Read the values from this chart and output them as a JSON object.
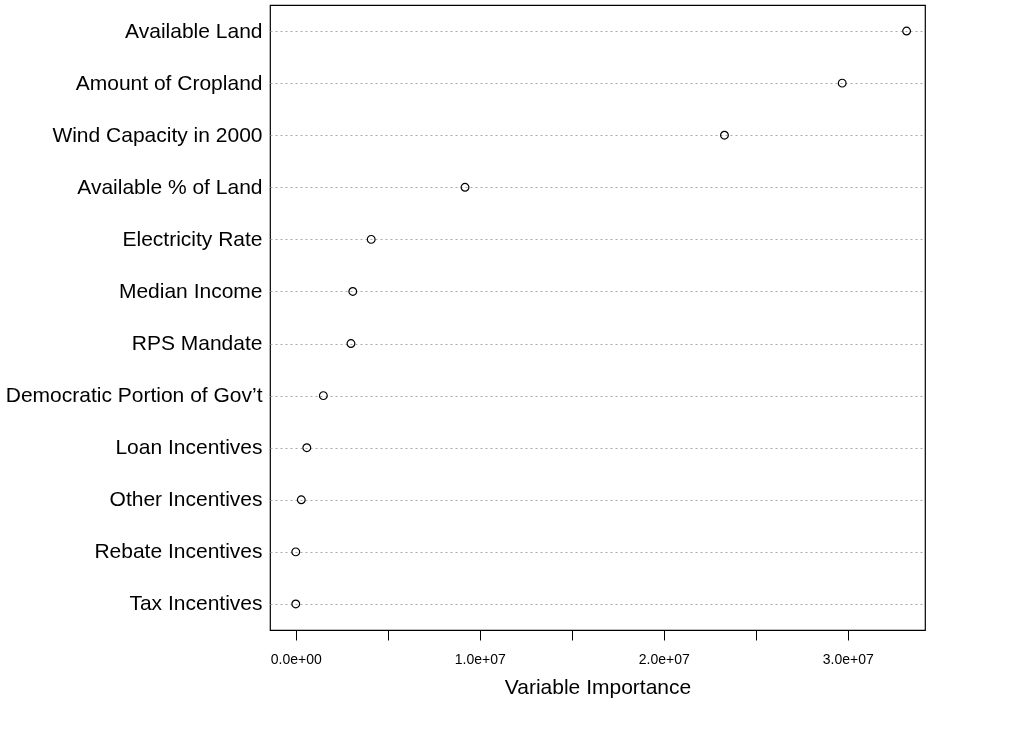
{
  "chart_data": {
    "type": "scatter",
    "orientation": "horizontal",
    "xlabel": "Variable Importance",
    "categories": [
      "Available Land",
      "Amount of Cropland",
      "Wind Capacity in 2000",
      "Available % of Land",
      "Electricity Rate",
      "Median Income",
      "RPS Mandate",
      "Democratic Portion of Gov’t",
      "Loan Incentives",
      "Other Incentives",
      "Rebate Incentives",
      "Tax Incentives"
    ],
    "values": [
      33200000,
      29700000,
      23300000,
      9200000,
      4100000,
      3100000,
      3000000,
      1500000,
      600000,
      300000,
      0,
      0
    ],
    "color": "#000000",
    "marker": "circle",
    "grid": "y",
    "xlim": [
      -1400000,
      34200000
    ],
    "xticks": [
      {
        "value": 0,
        "label": "0.0e+00"
      },
      {
        "value": 5000000,
        "label": null
      },
      {
        "value": 10000000,
        "label": "1.0e+07"
      },
      {
        "value": 15000000,
        "label": null
      },
      {
        "value": 20000000,
        "label": "2.0e+07"
      },
      {
        "value": 25000000,
        "label": null
      },
      {
        "value": 30000000,
        "label": "3.0e+07"
      }
    ]
  }
}
